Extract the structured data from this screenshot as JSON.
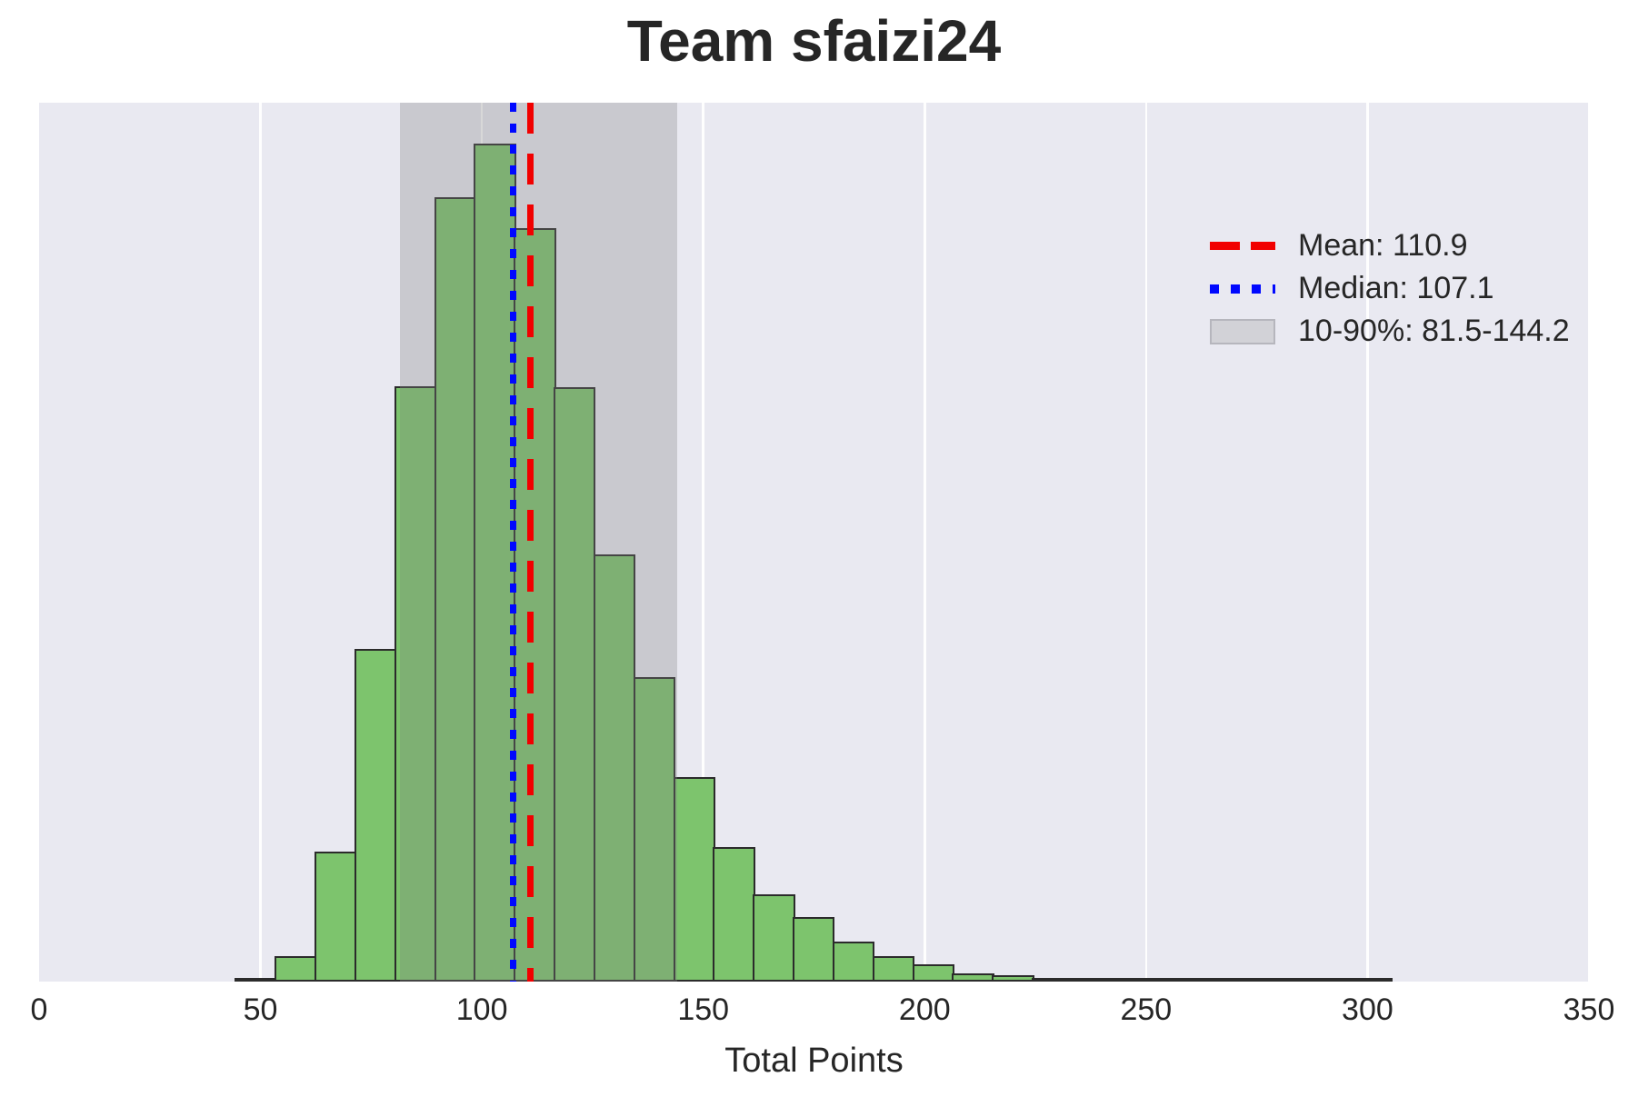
{
  "title": "Team sfaizi24",
  "xlabel": "Total Points",
  "x_ticks": [
    0,
    50,
    100,
    150,
    200,
    250,
    300,
    350
  ],
  "legend": {
    "mean_label": "Mean: 110.9",
    "median_label": "Median: 107.1",
    "band_label": "10-90%: 81.5-144.2"
  },
  "colors": {
    "background": "#ffffff",
    "plot_bg": "#e9e9f1",
    "bar_fill": "#7dc46d",
    "bar_edge": "#2b2b2b",
    "mean_line": "#f10000",
    "median_line": "#0008ff",
    "band_fill": "rgba(128,128,128,0.30)",
    "gridline": "rgba(255,255,255,0.92)",
    "text": "#262626"
  },
  "chart_data": {
    "type": "bar",
    "subtype": "histogram",
    "title": "Team sfaizi24",
    "xlabel": "Total Points",
    "ylabel": "",
    "xlim": [
      0,
      350
    ],
    "x_tick_values": [
      0,
      50,
      100,
      150,
      200,
      250,
      300,
      350
    ],
    "grid": "vertical-only",
    "legend_position": "upper-right",
    "bins": {
      "start": 44.4,
      "width": 9.0,
      "count": 29
    },
    "relative_frequencies": [
      0.004,
      0.03,
      0.155,
      0.397,
      0.71,
      0.936,
      1.0,
      0.899,
      0.709,
      0.51,
      0.363,
      0.244,
      0.161,
      0.104,
      0.077,
      0.048,
      0.03,
      0.021,
      0.01,
      0.008,
      0.004,
      0.003,
      0.002,
      0.004,
      0.003,
      0.002,
      0.002,
      0.002,
      0.002
    ],
    "mean": 110.9,
    "median": 107.1,
    "percentile_band": {
      "label": "10-90%",
      "low": 81.5,
      "high": 144.2
    }
  }
}
